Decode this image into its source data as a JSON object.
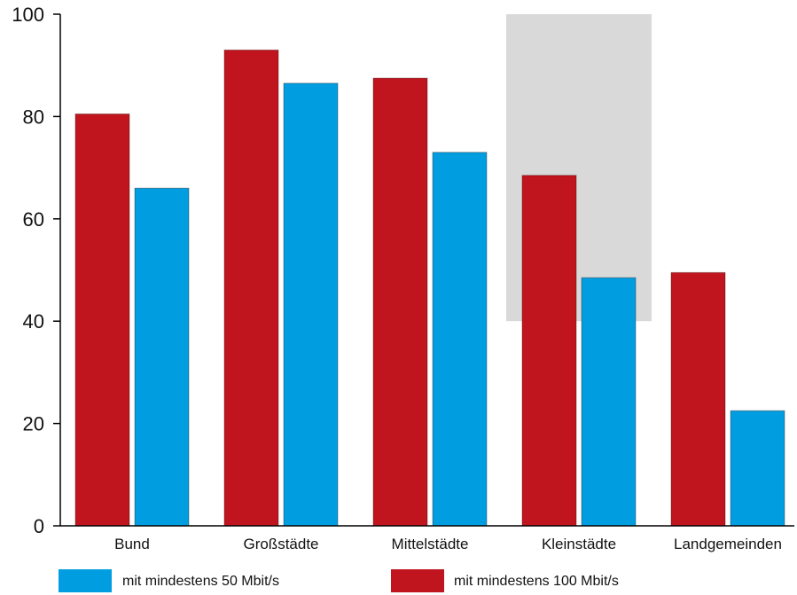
{
  "chart_data": {
    "type": "bar",
    "categories": [
      "Bund",
      "Großstädte",
      "Mittelstädte",
      "Kleinstädte",
      "Landgemeinden"
    ],
    "series": [
      {
        "name": "mit mindestens 100 Mbit/s",
        "values": [
          80.5,
          93,
          87.5,
          68.5,
          49.5
        ],
        "color": "#c0141e"
      },
      {
        "name": "mit mindestens 50 Mbit/s",
        "values": [
          66,
          86.5,
          73,
          48.5,
          22.5
        ],
        "color": "#009ee0"
      }
    ],
    "ylim": [
      0,
      100
    ],
    "yticks": [
      "0",
      "20",
      "40",
      "60",
      "80",
      "100"
    ],
    "highlight_category": "Kleinstädte",
    "highlight_color": "#d9d9d9",
    "legend": {
      "placement": "bottom",
      "items": [
        {
          "label": "mit mindestens 50 Mbit/s",
          "color": "#009ee0"
        },
        {
          "label": "mit mindestens 100 Mbit/s",
          "color": "#c0141e"
        }
      ]
    },
    "grid": false,
    "title": "",
    "xlabel": "",
    "ylabel": ""
  }
}
